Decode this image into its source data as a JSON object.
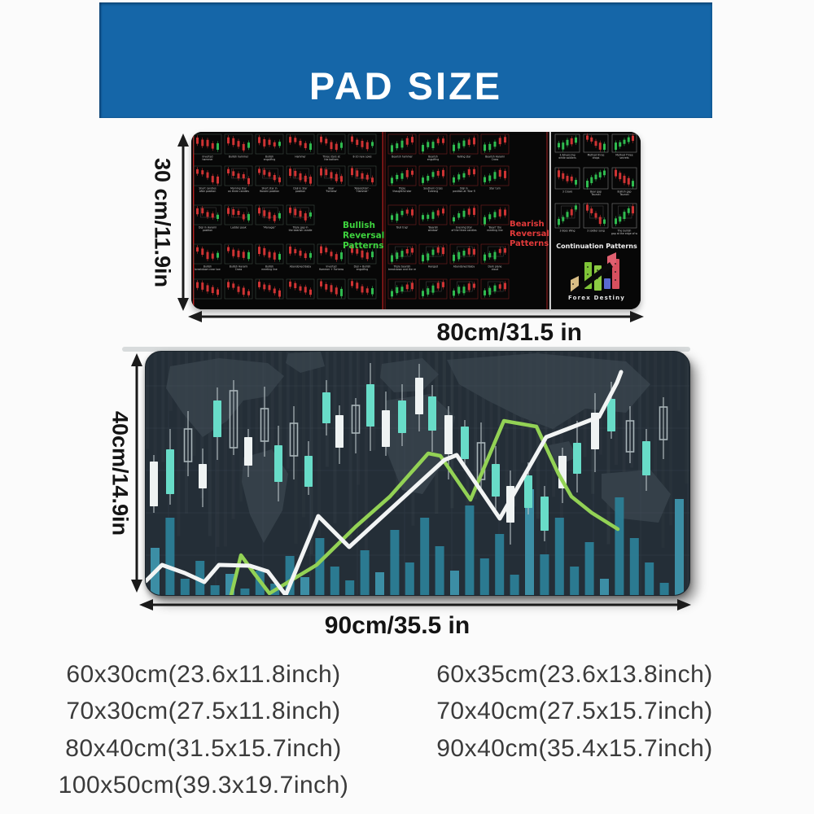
{
  "banner": {
    "title": "PAD SIZE",
    "bg_color": "#1566a8",
    "text_color": "#ffffff"
  },
  "pad_top": {
    "height_label": "30 cm/11.9in",
    "width_label": "80cm/31.5 in",
    "brand": "Forex Destiny",
    "candle_colors": {
      "up": "#2fbb4f",
      "down": "#cf3333"
    },
    "sections": [
      {
        "id": "bullish",
        "title": "Bullish Reversal Patterns",
        "title_color": "#3ed43e",
        "tile_labels": [
          "Inverted hammer",
          "Bullish hammer",
          "Bullish engulfing",
          "Hammer",
          "Three stars at the bottom",
          "8-10 new Lows",
          "Short candles after position",
          "Morning Star on three candles",
          "Short star in Harami position",
          "Doji in Star position",
          "Bear 'Fortress'",
          "'Absorption' - 'Hammer'",
          "Doji in Harami position",
          "Ladder peak",
          "'Manager'",
          "Triple gap in the bearish candle",
          "Bullish breakdown near low",
          "Bullish Harami Cross",
          "Bullish meeting line",
          "Abandoned Baby",
          "Inverted Hammer + Fortress",
          "Doji + Bullish engulfing",
          "",
          "",
          "",
          "",
          "",
          ""
        ]
      },
      {
        "id": "bearish",
        "title": "Bearish Reversal Patterns",
        "title_color": "#e23a3a",
        "tile_labels": [
          "Bearish hammer",
          "Bearish engulfing",
          "Falling star",
          "Bearish Harami Cross",
          "Triple thoughtful star",
          "Southern Cross Evening",
          "Doji in position at 'Star flare'",
          "Star turn",
          "'Bull trap'",
          "'Bearish window'",
          "Evening Star of the three candles",
          "'Bear!' the meeting line",
          "Triple bearish breakdown and the resistance line",
          "Hanged",
          "Abandoned Baby",
          "Dark plane cloud",
          "",
          "",
          "",
          ""
        ]
      },
      {
        "id": "continuation",
        "title": "Continuation Patterns",
        "title_color": "#f2f2f2",
        "tile_labels": [
          "3 Advancing white soldiers",
          "Method three drops",
          "Method Three secrets",
          "3 Crows",
          "Bear gap Tsuzuki",
          "Bullish gap Tsuzuki",
          "3 Boss Wing",
          "3 soldier song",
          "The bullish gap at the edge of white lines"
        ]
      }
    ]
  },
  "pad_bottom": {
    "height_label": "40cm/14.9in",
    "width_label": "90cm/35.5 in",
    "colors": {
      "bg": "#242e37",
      "teal_candle": "#68dcc8",
      "white_candle": "#eff3f3",
      "green_line": "#93d255",
      "white_line": "#f2f4f4",
      "volume_bar": "#2c7e96"
    }
  },
  "size_options": {
    "left": [
      "60x30cm(23.6x11.8inch)",
      "70x30cm(27.5x11.8inch)",
      "80x40cm(31.5x15.7inch)",
      "100x50cm(39.3x19.7inch)"
    ],
    "right": [
      "60x35cm(23.6x13.8inch)",
      "70x40cm(27.5x15.7inch)",
      "90x40cm(35.4x15.7inch)"
    ]
  }
}
